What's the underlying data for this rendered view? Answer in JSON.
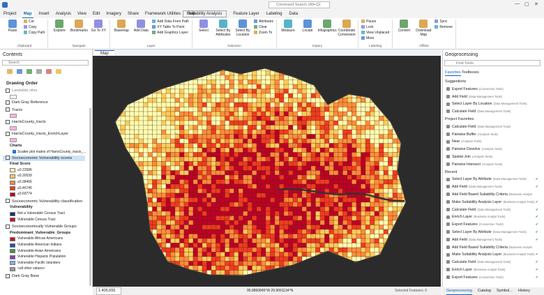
{
  "app": {
    "search": "Command Search (Alt+Q)",
    "tabs": [
      "Project",
      "Map",
      "Insert",
      "Analysis",
      "View",
      "Edit",
      "Imagery",
      "Share",
      "Framework Utilities",
      "Help"
    ],
    "contextual_tabs": [
      "Suitability Analysis",
      "Feature Layer",
      "Labeling",
      "Data"
    ],
    "ribbon": [
      {
        "label": "Clipboard",
        "large": [
          "Paste"
        ],
        "small": [
          "Cut",
          "Copy",
          "Copy Path"
        ]
      },
      {
        "label": "Navigate",
        "large": [
          "Explore",
          "Bookmarks",
          "Go To XY"
        ],
        "small": []
      },
      {
        "label": "Layer",
        "large": [
          "Basemap",
          "Add Data"
        ],
        "small": [
          "Add Data From Path",
          "XY Table To Point",
          "Add Graphics Layer"
        ]
      },
      {
        "label": "Selection",
        "large": [
          "Select",
          "Select By Attributes",
          "Select By Location"
        ],
        "small": [
          "Attributes",
          "Clear",
          "Zoom To"
        ]
      },
      {
        "label": "Inquiry",
        "large": [
          "Measure",
          "Locate",
          "Infographics",
          "Coordinate Conversion"
        ],
        "small": []
      },
      {
        "label": "Labeling",
        "large": [],
        "small": [
          "Pause",
          "Lock",
          "View Unplaced",
          "More"
        ]
      },
      {
        "label": "Offline",
        "large": [
          "Convert",
          "Download Map"
        ],
        "small": [
          "Sync",
          "Remove"
        ]
      }
    ]
  },
  "contents": {
    "title": "Contents",
    "search": "Search",
    "heading": "Drawing Order",
    "layers": [
      {
        "name": "Landslide sites"
      },
      {
        "name": "Dark Gray Reference"
      },
      {
        "name": "Tracts"
      },
      {
        "name": "HarrisCounty_tracts"
      },
      {
        "name": "HarrisCounty_tracts_EnrichLayer",
        "charts_title": "Charts",
        "chart": "Scatter plot matrix of HarrisCounty_tracts_..."
      },
      {
        "name": "Socioeconomic Vulnerability scores",
        "legend_title": "Final Score",
        "legend": [
          "≤0.22586",
          "≤0.30539",
          "≤0.38466",
          "≤0.46745",
          "≤0.69774"
        ]
      },
      {
        "name": "Socioeconomic Vulnerability classification",
        "legend_title": "Vulnerability",
        "legend": [
          "Not a Vulnerable Census Tract",
          "Vulnerable Census Tract"
        ]
      },
      {
        "name": "Socioeconomically Vulnerable Groups",
        "legend_title": "Predominant_Vulnerable_Groups",
        "legend": [
          "Vulnerable African Americans",
          "Vulnerable American Indians",
          "Vulnerable Asian Americans",
          "Vulnerable Hispanic Population",
          "Vulnerable Pacific Islanders",
          "<all other values>"
        ]
      },
      {
        "name": "Dark Gray Base"
      }
    ]
  },
  "map": {
    "tab": "Map",
    "scale": "1:405,655",
    "coordinates": "95.8860845°W 29.9091134°N",
    "selected": "Selected Features: 0"
  },
  "geoprocessing": {
    "title": "Geoprocessing",
    "search": "Find Tools",
    "tabs": [
      "Favorites",
      "Toolboxes"
    ],
    "sections": [
      {
        "title": "Suggestions",
        "items": [
          {
            "name": "Export Features",
            "toolbox": "(Conversion Tools)"
          },
          {
            "name": "Add Field",
            "toolbox": "(Data Management Tools)"
          },
          {
            "name": "Select Layer By Location",
            "toolbox": "(Data Management Tools)"
          },
          {
            "name": "Calculate Field",
            "toolbox": "(Data Management Tools)"
          }
        ]
      },
      {
        "title": "Project Favorites",
        "items": [
          {
            "name": "Calculate Field",
            "toolbox": "(Data Management Tools)"
          },
          {
            "name": "Pairwise Buffer",
            "toolbox": "(Analysis Tools)"
          },
          {
            "name": "Near",
            "toolbox": "(Analysis Tools)"
          },
          {
            "name": "Pairwise Dissolve",
            "toolbox": "(Analysis Tools)"
          },
          {
            "name": "Spatial Join",
            "toolbox": "(Analysis Tools)"
          },
          {
            "name": "Pairwise Intersect",
            "toolbox": "(Analysis Tools)"
          }
        ]
      },
      {
        "title": "Recent",
        "items": [
          {
            "name": "Select Layer By Attribute",
            "toolbox": "(Data Management Tools)"
          },
          {
            "name": "Add Field",
            "toolbox": "(Data Management Tools)"
          },
          {
            "name": "Add Field Based Suitability Criteria",
            "toolbox": "(Business Analyst Tools)"
          },
          {
            "name": "Make Suitability Analysis Layer",
            "toolbox": "(Business Analyst Tools)"
          },
          {
            "name": "Calculate Field",
            "toolbox": "(Data Management Tools)"
          },
          {
            "name": "Enrich Layer",
            "toolbox": "(Business Analyst Tools)"
          },
          {
            "name": "Export Features",
            "toolbox": "(Conversion Tools)"
          },
          {
            "name": "Select Layer By Attribute",
            "toolbox": "(Data Management Tools)"
          },
          {
            "name": "Add Field",
            "toolbox": "(Data Management Tools)"
          },
          {
            "name": "Add Field Based Suitability Criteria",
            "toolbox": "(Business Analyst Tools)"
          },
          {
            "name": "Make Suitability Analysis Layer",
            "toolbox": "(Business Analyst Tools)"
          },
          {
            "name": "Calculate Field",
            "toolbox": "(Data Management Tools)"
          },
          {
            "name": "Enrich Layer",
            "toolbox": "(Business Analyst Tools)"
          },
          {
            "name": "Export Features",
            "toolbox": "(Conversion Tools)"
          }
        ]
      }
    ],
    "bottom_tabs": [
      "Geoprocessing",
      "Catalog",
      "Symbol...",
      "History"
    ]
  }
}
